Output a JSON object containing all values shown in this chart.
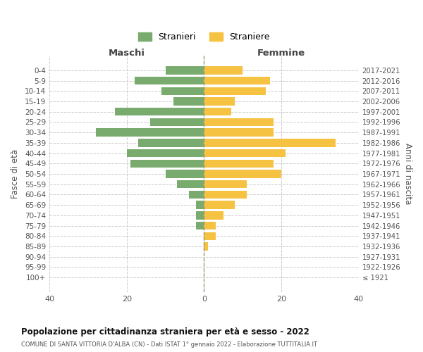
{
  "age_groups": [
    "0-4",
    "5-9",
    "10-14",
    "15-19",
    "20-24",
    "25-29",
    "30-34",
    "35-39",
    "40-44",
    "45-49",
    "50-54",
    "55-59",
    "60-64",
    "65-69",
    "70-74",
    "75-79",
    "80-84",
    "85-89",
    "90-94",
    "95-99",
    "100+"
  ],
  "birth_years": [
    "2017-2021",
    "2012-2016",
    "2007-2011",
    "2002-2006",
    "1997-2001",
    "1992-1996",
    "1987-1991",
    "1982-1986",
    "1977-1981",
    "1972-1976",
    "1967-1971",
    "1962-1966",
    "1957-1961",
    "1952-1956",
    "1947-1951",
    "1942-1946",
    "1937-1941",
    "1932-1936",
    "1927-1931",
    "1922-1926",
    "≤ 1921"
  ],
  "maschi": [
    10,
    18,
    11,
    8,
    23,
    14,
    28,
    17,
    20,
    19,
    10,
    7,
    4,
    2,
    2,
    2,
    0,
    0,
    0,
    0,
    0
  ],
  "femmine": [
    10,
    17,
    16,
    8,
    7,
    18,
    18,
    34,
    21,
    18,
    20,
    11,
    11,
    8,
    5,
    3,
    3,
    1,
    0,
    0,
    0
  ],
  "maschi_color": "#7aab6e",
  "femmine_color": "#f5c242",
  "title": "Popolazione per cittadinanza straniera per età e sesso - 2022",
  "subtitle": "COMUNE DI SANTA VITTORIA D'ALBA (CN) - Dati ISTAT 1° gennaio 2022 - Elaborazione TUTTITALIA.IT",
  "xlabel_left": "Maschi",
  "xlabel_right": "Femmine",
  "ylabel_left": "Fasce di età",
  "ylabel_right": "Anni di nascita",
  "legend_male": "Stranieri",
  "legend_female": "Straniere",
  "xlim": 40,
  "background_color": "#ffffff",
  "grid_color": "#cccccc"
}
